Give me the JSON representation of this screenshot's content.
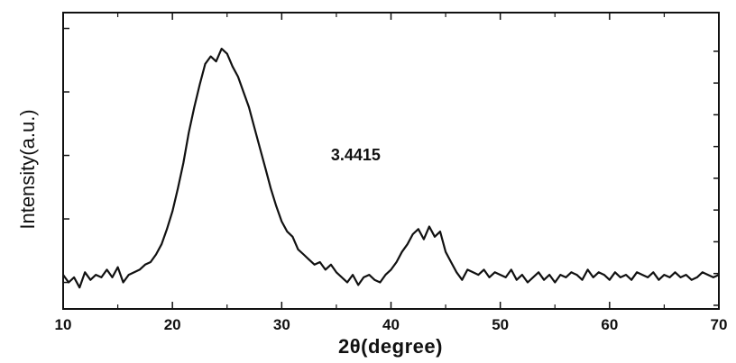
{
  "chart_data": {
    "type": "line",
    "title": "",
    "xlabel": "2θ(degree)",
    "ylabel": "Intensity(a.u.)",
    "xlim": [
      10,
      70
    ],
    "ylim": [
      0,
      100
    ],
    "x_ticks": [
      10,
      20,
      30,
      40,
      50,
      60,
      70
    ],
    "x_tick_labels": [
      "10",
      "20",
      "30",
      "40",
      "50",
      "60",
      "70"
    ],
    "y_tick_labels_shown": false,
    "grid": false,
    "legend": "none",
    "annotations": [
      {
        "text": "3.4415",
        "x": 34.5,
        "y": 51
      }
    ],
    "series": [
      {
        "color": "#111111",
        "x": [
          10.0,
          10.5,
          11.0,
          11.5,
          12.0,
          12.5,
          13.0,
          13.5,
          14.0,
          14.5,
          15.0,
          15.5,
          16.0,
          16.5,
          17.0,
          17.5,
          18.0,
          18.5,
          19.0,
          19.5,
          20.0,
          20.5,
          21.0,
          21.5,
          22.0,
          22.5,
          23.0,
          23.5,
          24.0,
          24.5,
          25.0,
          25.5,
          26.0,
          26.5,
          27.0,
          27.5,
          28.0,
          28.5,
          29.0,
          29.5,
          30.0,
          30.5,
          31.0,
          31.5,
          32.0,
          32.5,
          33.0,
          33.5,
          34.0,
          34.5,
          35.0,
          35.5,
          36.0,
          36.5,
          37.0,
          37.5,
          38.0,
          38.5,
          39.0,
          39.5,
          40.0,
          40.5,
          41.0,
          41.5,
          42.0,
          42.5,
          43.0,
          43.5,
          44.0,
          44.5,
          45.0,
          45.5,
          46.0,
          46.5,
          47.0,
          47.5,
          48.0,
          48.5,
          49.0,
          49.5,
          50.0,
          50.5,
          51.0,
          51.5,
          52.0,
          52.5,
          53.0,
          53.5,
          54.0,
          54.5,
          55.0,
          55.5,
          56.0,
          56.5,
          57.0,
          57.5,
          58.0,
          58.5,
          59.0,
          59.5,
          60.0,
          60.5,
          61.0,
          61.5,
          62.0,
          62.5,
          63.0,
          63.5,
          64.0,
          64.5,
          65.0,
          65.5,
          66.0,
          66.5,
          67.0,
          67.5,
          68.0,
          68.5,
          69.0,
          69.5,
          70.0
        ],
        "y": [
          6,
          3,
          5,
          1,
          7,
          4,
          6,
          5,
          8,
          5,
          9,
          3,
          6,
          7,
          8,
          10,
          11,
          14,
          18,
          24,
          31,
          40,
          50,
          62,
          72,
          81,
          89,
          92,
          90,
          95,
          93,
          88,
          84,
          78,
          72,
          64,
          56,
          48,
          40,
          33,
          27,
          23,
          21,
          16,
          14,
          12,
          10,
          11,
          8,
          10,
          7,
          5,
          3,
          6,
          2,
          5,
          6,
          4,
          3,
          6,
          8,
          11,
          15,
          18,
          22,
          24,
          20,
          25,
          21,
          23,
          15,
          11,
          7,
          4,
          8,
          7,
          6,
          8,
          5,
          7,
          6,
          5,
          8,
          4,
          6,
          3,
          5,
          7,
          4,
          6,
          3,
          6,
          5,
          7,
          6,
          4,
          8,
          5,
          7,
          6,
          4,
          7,
          5,
          6,
          4,
          7,
          6,
          5,
          7,
          4,
          6,
          5,
          7,
          5,
          6,
          4,
          5,
          7,
          6,
          5,
          6
        ]
      }
    ]
  }
}
